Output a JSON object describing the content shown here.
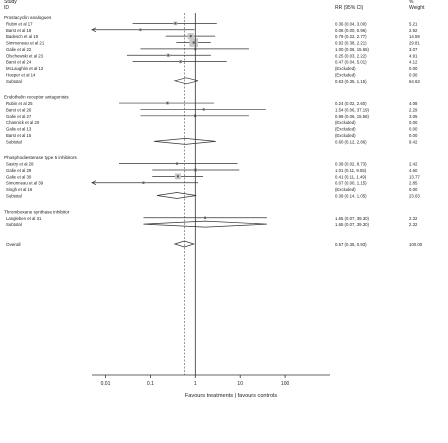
{
  "header": {
    "study_label": "Study\nID",
    "rr_label": "RR (95% CI)",
    "weight_label": "%\nWeight"
  },
  "axis": {
    "scale": "log",
    "ticks": [
      "0.01",
      "0.1",
      "1",
      "10",
      "100"
    ],
    "tick_values": [
      0.01,
      0.1,
      1,
      10,
      100
    ],
    "xlim": [
      0.005,
      1000
    ],
    "label": "Favours treatments | favours controls"
  },
  "chart_data": {
    "type": "forest",
    "groups": [
      {
        "name": "Prostacyclin analogues",
        "studies": [
          {
            "study": "Rubin et al 17",
            "rr": 0.36,
            "lo": 0.04,
            "hi": 3.0,
            "ci_text": "0.36 (0.04, 3.00)",
            "weight": "5.21"
          },
          {
            "study": "Barst et al 18",
            "rr": 0.06,
            "lo": 0.0,
            "hi": 0.96,
            "ci_text": "0.06 (0.00, 0.96)",
            "weight": "2.92"
          },
          {
            "study": "Badesch et al 19",
            "rr": 0.79,
            "lo": 0.22,
            "hi": 2.77,
            "ci_text": "0.79 (0.22, 2.77)",
            "weight": "14.59"
          },
          {
            "study": "Simmoneau et al 21",
            "rr": 0.92,
            "lo": 0.38,
            "hi": 2.21,
            "ci_text": "0.92 (0.38, 2.21)",
            "weight": "29.81"
          },
          {
            "study": "Galie et al 22",
            "rr": 1.0,
            "lo": 0.06,
            "hi": 15.65,
            "ci_text": "1.00 (0.06, 15.65)",
            "weight": "3.07"
          },
          {
            "study": "Olschewski et al 23",
            "rr": 0.25,
            "lo": 0.03,
            "hi": 2.22,
            "ci_text": "0.25 (0.03, 2.22)",
            "weight": "4.91"
          },
          {
            "study": "Barst et al 24",
            "rr": 0.47,
            "lo": 0.04,
            "hi": 5.01,
            "ci_text": "0.47 (0.04, 5.01)",
            "weight": "4.12"
          },
          {
            "study": "McLaughlin et al 12",
            "excluded": true,
            "ci_text": "(Excluded)",
            "weight": "0.00"
          },
          {
            "study": "Hoeper et al 14",
            "excluded": true,
            "ci_text": "(Excluded)",
            "weight": "0.00"
          }
        ],
        "subtotal": {
          "label": "Subtotal",
          "rr": 0.63,
          "lo": 0.35,
          "hi": 1.15,
          "ci_text": "0.63 (0.35, 1.15)",
          "weight": "64.63"
        }
      },
      {
        "name": "Endothelin receptor antagonists",
        "studies": [
          {
            "study": "Rubin et al 25",
            "rr": 0.24,
            "lo": 0.02,
            "hi": 2.6,
            "ci_text": "0.24 (0.02, 2.60)",
            "weight": "4.08"
          },
          {
            "study": "Barst et al 26",
            "rr": 1.54,
            "lo": 0.06,
            "hi": 37.19,
            "ci_text": "1.54 (0.06, 37.19)",
            "weight": "2.29"
          },
          {
            "study": "Galie et al 27",
            "rr": 0.99,
            "lo": 0.06,
            "hi": 15.58,
            "ci_text": "0.99 (0.06, 15.58)",
            "weight": "3.05"
          },
          {
            "study": "Channick et al 20",
            "excluded": true,
            "ci_text": "(Excluded)",
            "weight": "0.00"
          },
          {
            "study": "Galie et al 13",
            "excluded": true,
            "ci_text": "(Excluded)",
            "weight": "0.00"
          },
          {
            "study": "Barst et al 15",
            "excluded": true,
            "ci_text": "(Excluded)",
            "weight": "0.00"
          }
        ],
        "subtotal": {
          "label": "Subtotal",
          "rr": 0.6,
          "lo": 0.12,
          "hi": 2.86,
          "ci_text": "0.60 (0.12, 2.86)",
          "weight": "9.42"
        }
      },
      {
        "name": "Phosphodiesterase type 5 inhibitors",
        "studies": [
          {
            "study": "Sastry et al 28",
            "rr": 0.39,
            "lo": 0.02,
            "hi": 8.73,
            "ci_text": "0.39 (0.02, 8.73)",
            "weight": "2.42"
          },
          {
            "study": "Galie et al 29",
            "rr": 1.01,
            "lo": 0.11,
            "hi": 9.55,
            "ci_text": "1.01 (0.11, 9.55)",
            "weight": "4.60"
          },
          {
            "study": "Galie et al 30",
            "rr": 0.41,
            "lo": 0.11,
            "hi": 1.49,
            "ci_text": "0.41 (0.11, 1.49)",
            "weight": "13.77"
          },
          {
            "study": "Simonneau et al 39",
            "rr": 0.07,
            "lo": 0.0,
            "hi": 1.15,
            "ci_text": "0.07 (0.00, 1.15)",
            "weight": "2.85"
          },
          {
            "study": "Singh et al 16",
            "excluded": true,
            "ci_text": "(Excluded)",
            "weight": "0.00"
          }
        ],
        "subtotal": {
          "label": "Subtotal",
          "rr": 0.39,
          "lo": 0.14,
          "hi": 1.05,
          "ci_text": "0.39 (0.14, 1.05)",
          "weight": "23.63"
        }
      },
      {
        "name": "Thromboxane synthase inhibitor",
        "studies": [
          {
            "study": "Langleben et al 31",
            "rr": 1.65,
            "lo": 0.07,
            "hi": 39.3,
            "ci_text": "1.65 (0.07, 39.30)",
            "weight": "2.32"
          }
        ],
        "subtotal": {
          "label": "Subtotal",
          "rr": 1.65,
          "lo": 0.07,
          "hi": 39.3,
          "ci_text": "1.65 (0.07, 39.30)",
          "weight": "2.32"
        }
      }
    ],
    "overall": {
      "label": "Overall",
      "rr": 0.57,
      "lo": 0.35,
      "hi": 0.93,
      "ci_text": "0.57 (0.35, 0.93)",
      "weight": "100.00"
    },
    "colors": {
      "marker": "#555555",
      "box": "#c8c8c8",
      "line": "#333333"
    }
  }
}
